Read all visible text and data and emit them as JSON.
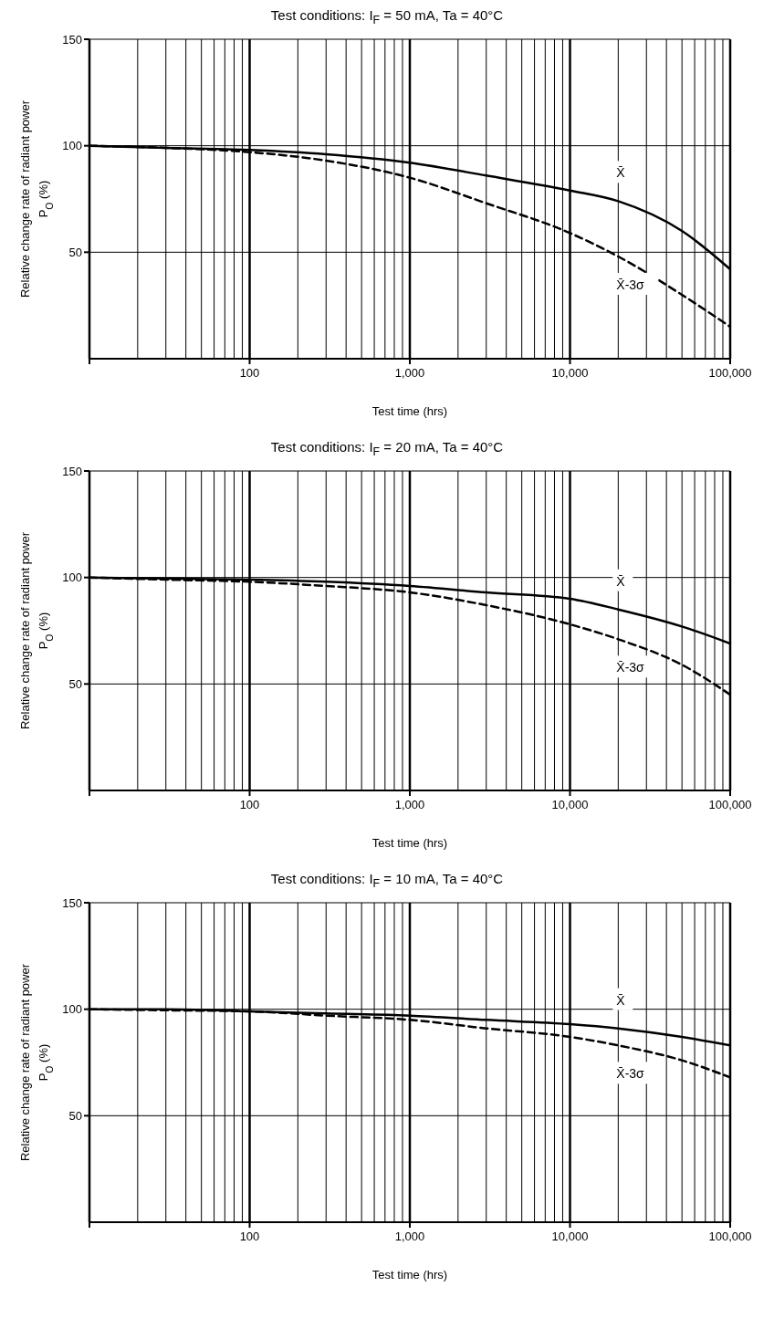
{
  "chart_data": [
    {
      "type": "line",
      "title": "Test conditions: I$_{F}$ = 50 mA, Ta = 40°C",
      "xlabel": "Test time (hrs)",
      "ylabel": "Relative change rate of radiant power\nP$_{O}$ (%)",
      "log": "x",
      "grid": true,
      "marker": "none",
      "legend": false,
      "xlim": [
        10,
        100000
      ],
      "xticks": [
        {
          "value": 10,
          "label": null
        },
        {
          "value": 100,
          "label": "100"
        },
        {
          "value": 1000,
          "label": "1,000"
        },
        {
          "value": 10000,
          "label": "10,000"
        },
        {
          "value": 100000,
          "label": "100,000"
        }
      ],
      "ylim": [
        0,
        150
      ],
      "yticks": [
        50,
        100,
        150
      ],
      "x": [
        10,
        30,
        100,
        300,
        1000,
        3000,
        10000,
        20000,
        50000,
        100000
      ],
      "series": [
        {
          "name": "X̄",
          "color": "#000000",
          "line_style": "solid",
          "values": [
            100,
            99,
            98,
            96,
            92,
            86,
            79,
            74,
            60,
            42
          ]
        },
        {
          "name": "X̄-3σ",
          "color": "#000000",
          "line_style": "dashed",
          "values": [
            100,
            99,
            97,
            93,
            85,
            73,
            59,
            48,
            30,
            15
          ]
        }
      ]
    },
    {
      "type": "line",
      "title": "Test conditions: I$_{F}$ = 20 mA, Ta = 40°C",
      "xlabel": "Test time (hrs)",
      "ylabel": "Relative change rate of radiant power\nP$_{O}$ (%)",
      "log": "x",
      "grid": true,
      "marker": "none",
      "legend": false,
      "xlim": [
        10,
        100000
      ],
      "xticks": [
        {
          "value": 10,
          "label": null
        },
        {
          "value": 100,
          "label": "100"
        },
        {
          "value": 1000,
          "label": "1,000"
        },
        {
          "value": 10000,
          "label": "10,000"
        },
        {
          "value": 100000,
          "label": "100,000"
        }
      ],
      "ylim": [
        0,
        150
      ],
      "yticks": [
        50,
        100,
        150
      ],
      "x": [
        10,
        30,
        100,
        300,
        1000,
        3000,
        10000,
        20000,
        50000,
        100000
      ],
      "series": [
        {
          "name": "X̄",
          "color": "#000000",
          "line_style": "solid",
          "values": [
            100,
            99.5,
            99,
            98,
            96,
            93,
            90,
            85,
            77,
            69
          ]
        },
        {
          "name": "X̄-3σ",
          "color": "#000000",
          "line_style": "dashed",
          "values": [
            100,
            99,
            98,
            96,
            93,
            87,
            78,
            71,
            59,
            45
          ]
        }
      ]
    },
    {
      "type": "line",
      "title": "Test conditions: I$_{F}$ = 10 mA, Ta = 40°C",
      "xlabel": "Test time (hrs)",
      "ylabel": "Relative change rate of radiant power\nP$_{O}$ (%)",
      "log": "x",
      "grid": true,
      "marker": "none",
      "legend": false,
      "xlim": [
        10,
        100000
      ],
      "xticks": [
        {
          "value": 10,
          "label": null
        },
        {
          "value": 100,
          "label": "100"
        },
        {
          "value": 1000,
          "label": "1,000"
        },
        {
          "value": 10000,
          "label": "10,000"
        },
        {
          "value": 100000,
          "label": "100,000"
        }
      ],
      "ylim": [
        0,
        150
      ],
      "yticks": [
        50,
        100,
        150
      ],
      "x": [
        10,
        30,
        100,
        300,
        1000,
        3000,
        10000,
        20000,
        50000,
        100000
      ],
      "series": [
        {
          "name": "X̄",
          "color": "#000000",
          "line_style": "solid",
          "values": [
            100,
            100,
            99,
            98,
            97,
            95,
            93,
            91,
            87,
            83
          ]
        },
        {
          "name": "X̄-3σ",
          "color": "#000000",
          "line_style": "dashed",
          "values": [
            100,
            99.5,
            99,
            97,
            95,
            91,
            87,
            83,
            76,
            68
          ]
        }
      ]
    }
  ]
}
